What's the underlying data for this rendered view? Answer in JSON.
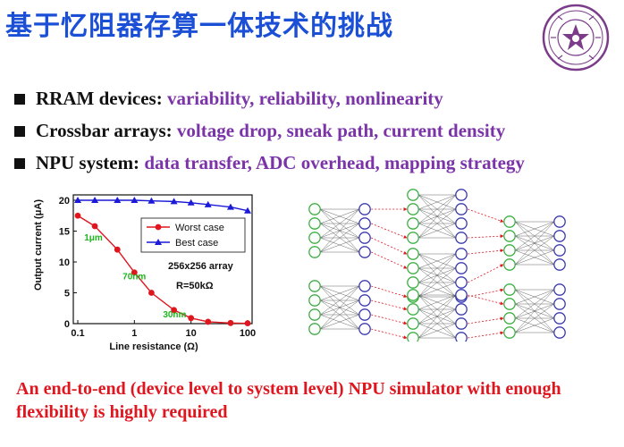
{
  "title": "基于忆阻器存算一体技术的挑战",
  "bullets": [
    {
      "head": "RRAM devices:",
      "rest": "variability, reliability, nonlinearity"
    },
    {
      "head": "Crossbar arrays:",
      "rest": "voltage drop, sneak path, current density"
    },
    {
      "head": "NPU system:",
      "rest": "data transfer, ADC overhead, mapping strategy"
    }
  ],
  "chart_data": {
    "type": "line",
    "xlabel": "Line resistance (Ω)",
    "ylabel": "Output current (μA)",
    "x_scale": "log",
    "xlim": [
      0.1,
      100
    ],
    "ylim": [
      0,
      20
    ],
    "x_ticks": [
      "0.1",
      "1",
      "10",
      "100"
    ],
    "y_ticks": [
      "0",
      "5",
      "10",
      "15",
      "20"
    ],
    "legend_position": "top-right",
    "series": [
      {
        "name": "Worst case",
        "color": "#e0161f",
        "marker": "circle",
        "x": [
          0.1,
          0.2,
          0.5,
          1,
          2,
          5,
          10,
          20,
          50,
          100
        ],
        "y": [
          17.5,
          15.8,
          12.0,
          8.3,
          5.0,
          2.2,
          0.9,
          0.3,
          0.1,
          0.05
        ]
      },
      {
        "name": "Best case",
        "color": "#1a1ad8",
        "marker": "triangle",
        "x": [
          0.1,
          0.2,
          0.5,
          1,
          2,
          5,
          10,
          20,
          50,
          100
        ],
        "y": [
          20.0,
          20.0,
          20.0,
          20.0,
          19.9,
          19.8,
          19.6,
          19.3,
          18.9,
          18.3
        ]
      }
    ],
    "annotations": [
      {
        "text": "256x256 array",
        "color": "#111111"
      },
      {
        "text": "R=50kΩ",
        "color": "#111111"
      },
      {
        "text": "1μm",
        "color": "#1db51d",
        "x": 0.13,
        "y": 13.5
      },
      {
        "text": "70nm",
        "color": "#1db51d",
        "x": 0.62,
        "y": 7.2
      },
      {
        "text": "30nm",
        "color": "#1db51d",
        "x": 3.2,
        "y": 1.0
      }
    ]
  },
  "conclusion": "An end-to-end (device level to system level) NPU simulator with enough flexibility is highly required",
  "colors": {
    "title": "#1a4fd6",
    "highlight": "#7b33a8",
    "conclusion": "#e0161f",
    "input_node": "#3cb043",
    "output_node": "#3a3ab0"
  }
}
